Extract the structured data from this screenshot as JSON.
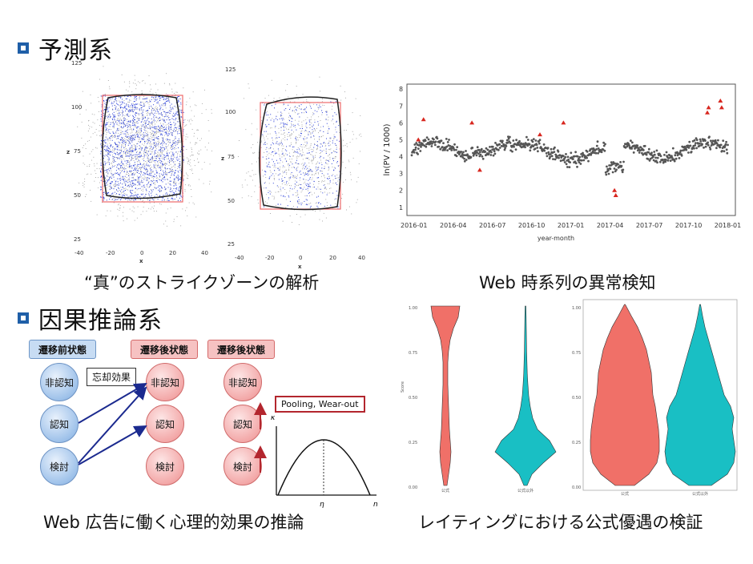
{
  "sections": {
    "prediction": "予測系",
    "causal": "因果推論系"
  },
  "captions": {
    "strike_zone": "“真”のストライクゾーンの解析",
    "web_anomaly": "Web 時系列の異常検知",
    "web_ads": "Web 広告に働く心理的効果の推論",
    "rating": "レイティングにおける公式優遇の検証"
  },
  "strike_zone_plots": {
    "left": {
      "y_ticks": [
        "125",
        "100",
        "75",
        "50",
        "25"
      ],
      "x_ticks": [
        "-40",
        "-20",
        "0",
        "20",
        "40"
      ],
      "xlabel": "x",
      "ylabel": "z"
    },
    "right": {
      "y_ticks": [
        "125",
        "100",
        "75",
        "50",
        "25"
      ],
      "x_ticks": [
        "-40",
        "-20",
        "0",
        "20",
        "40"
      ],
      "xlabel": "x",
      "ylabel": "z"
    }
  },
  "chart_data": [
    {
      "type": "scatter",
      "title": "",
      "xlabel": "year-month",
      "ylabel": "ln(PV / 1000)",
      "x_ticks": [
        "2016-01",
        "2016-04",
        "2016-07",
        "2016-10",
        "2017-01",
        "2017-04",
        "2017-07",
        "2017-10",
        "2018-01"
      ],
      "y_ticks": [
        "1",
        "2",
        "3",
        "4",
        "5",
        "6",
        "7",
        "8"
      ],
      "ylim": [
        0.8,
        8.2
      ],
      "anomalies": [
        {
          "t": 0.5,
          "v": 5.0
        },
        {
          "t": 0.9,
          "v": 6.2
        },
        {
          "t": 4.6,
          "v": 6.0
        },
        {
          "t": 5.2,
          "v": 3.2
        },
        {
          "t": 9.8,
          "v": 5.3
        },
        {
          "t": 11.6,
          "v": 6.0
        },
        {
          "t": 15.5,
          "v": 2.0
        },
        {
          "t": 15.6,
          "v": 1.7
        },
        {
          "t": 22.6,
          "v": 6.6
        },
        {
          "t": 22.7,
          "v": 6.9
        },
        {
          "t": 23.6,
          "v": 7.3
        },
        {
          "t": 23.7,
          "v": 6.9
        }
      ]
    },
    {
      "type": "violin",
      "title": "",
      "xlabel": "",
      "ylabel": "Score",
      "y_ticks": [
        "1.00",
        "0.75",
        "0.50",
        "0.25",
        "0.00"
      ],
      "categories": [
        "公式",
        "公式以外"
      ],
      "colors": [
        "#f07068",
        "#19bfc4"
      ]
    },
    {
      "type": "violin",
      "title": "",
      "xlabel": "",
      "ylabel": "",
      "y_ticks": [
        "1.00",
        "0.75",
        "0.50",
        "0.25",
        "0.00"
      ],
      "categories": [
        "公式",
        "公式以外"
      ],
      "colors": [
        "#f07068",
        "#19bfc4"
      ]
    }
  ],
  "causal_diagram": {
    "before_header": "遷移前状態",
    "after_header_1": "遷移後状態",
    "after_header_2": "遷移後状態",
    "states": [
      "非認知",
      "認知",
      "検討"
    ],
    "forget_label": "忘却効果",
    "pooling_label": "Pooling, Wear-out",
    "kappa_label": "κ",
    "eta_label": "η",
    "n_label": "n"
  }
}
